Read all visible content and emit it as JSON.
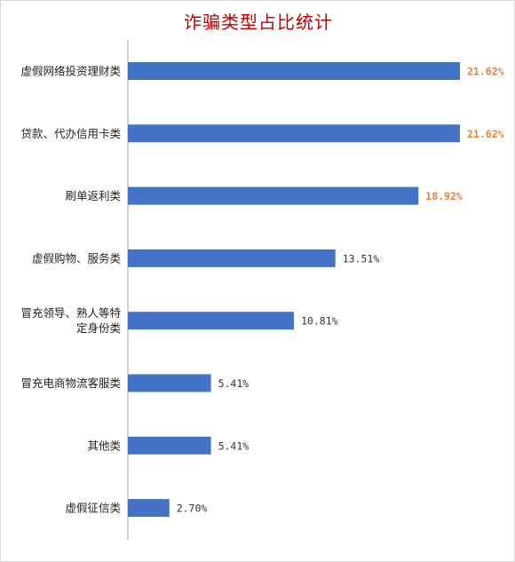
{
  "chart_data": {
    "type": "bar",
    "orientation": "horizontal",
    "title": "诈骗类型占比统计",
    "categories": [
      "虚假网络投资理财类",
      "贷款、代办信用卡类",
      "刷单返利类",
      "虚假购物、服务类",
      "冒充领导、熟人等特定身份类",
      "冒充电商物流客服类",
      "其他类",
      "虚假征信类"
    ],
    "category_lines": [
      [
        "虚假网络投资理财类"
      ],
      [
        "贷款、代办信用卡类"
      ],
      [
        "刷单返利类"
      ],
      [
        "虚假购物、服务类"
      ],
      [
        "冒充领导、熟人等特",
        "定身份类"
      ],
      [
        "冒充电商物流客服类"
      ],
      [
        "其他类"
      ],
      [
        "虚假征信类"
      ]
    ],
    "values": [
      21.62,
      21.62,
      18.92,
      13.51,
      10.81,
      5.41,
      5.41,
      2.7
    ],
    "value_labels": [
      "21.62%",
      "21.62%",
      "18.92%",
      "13.51%",
      "10.81%",
      "5.41%",
      "5.41%",
      "2.70%"
    ],
    "highlighted": [
      true,
      true,
      true,
      false,
      false,
      false,
      false,
      false
    ],
    "xlim": [
      0,
      23
    ],
    "bar_color": "#4472c4",
    "highlight_label_color": "#ed7d31",
    "title_color": "#c00000",
    "grid": false,
    "legend": "none"
  }
}
